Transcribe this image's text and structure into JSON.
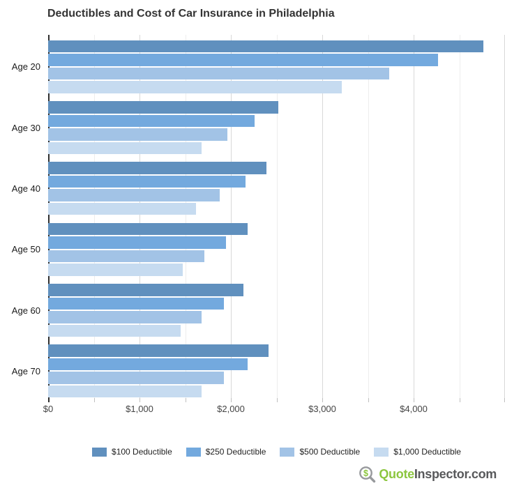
{
  "title": "Deductibles and Cost of Car Insurance in Philadelphia",
  "chart_data": {
    "type": "bar",
    "orientation": "horizontal",
    "title": "Deductibles and Cost of Car Insurance in Philadelphia",
    "categories": [
      "Age 20",
      "Age 30",
      "Age 40",
      "Age 50",
      "Age 60",
      "Age 70"
    ],
    "series": [
      {
        "name": "$100 Deductible",
        "color": "#6090BE",
        "values": [
          4760,
          2520,
          2390,
          2180,
          2140,
          2410
        ]
      },
      {
        "name": "$250 Deductible",
        "color": "#73A9DE",
        "values": [
          4270,
          2260,
          2160,
          1950,
          1920,
          2180
        ]
      },
      {
        "name": "$500 Deductible",
        "color": "#A2C3E6",
        "values": [
          3730,
          1960,
          1880,
          1710,
          1680,
          1920
        ]
      },
      {
        "name": "$1,000 Deductible",
        "color": "#C6DBF0",
        "values": [
          3210,
          1680,
          1620,
          1470,
          1450,
          1680
        ]
      }
    ],
    "xlabel": "",
    "ylabel": "",
    "xlim": [
      0,
      5000
    ],
    "x_tick_step": 500,
    "x_label_step": 1000,
    "x_tick_labels": [
      "$0",
      "$1,000",
      "$2,000",
      "$3,000",
      "$4,000"
    ],
    "grid": true,
    "legend_position": "bottom"
  },
  "colors": {
    "axis": "#2f2f2f",
    "grid_major": "#d8d8d8",
    "grid_minor": "#ededed",
    "tick": "#bfbfbf",
    "title": "#333333"
  },
  "brand": {
    "icon": "magnifier-dollar-icon",
    "icon_symbol": "$",
    "green_text": "Quote",
    "dark_text": "Inspector.com",
    "green": "#8CC63F",
    "dark": "#58595B",
    "icon_gray": "#97999C"
  }
}
